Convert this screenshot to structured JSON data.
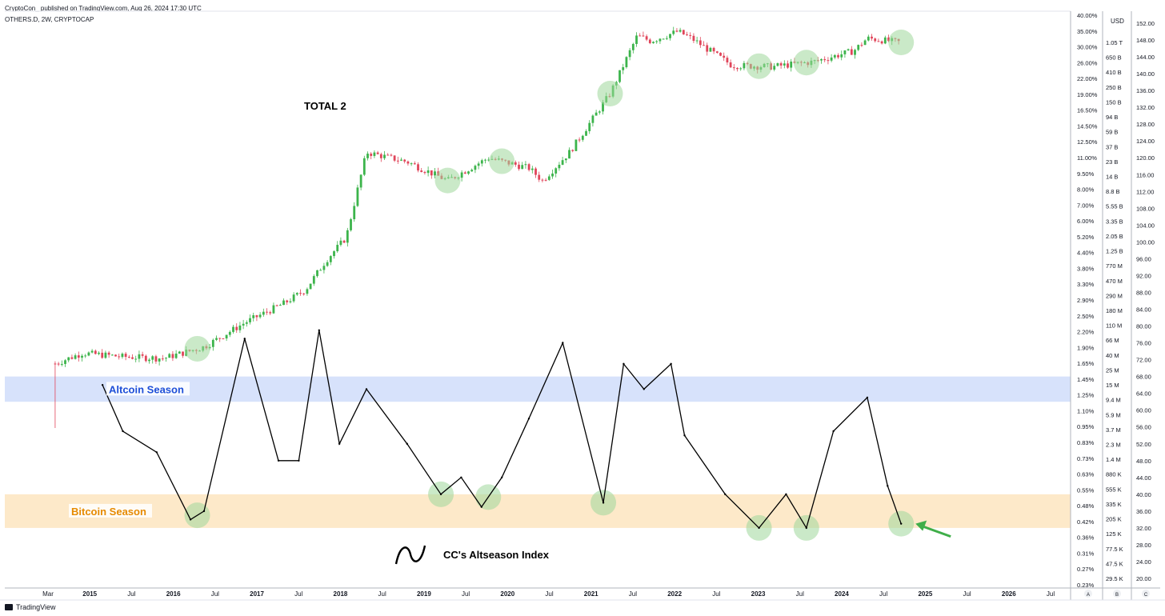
{
  "header": {
    "publisher": "CryptoCon_ published on TradingView.com, Aug 26, 2024 17:30 UTC",
    "symbol": "OTHERS.D, 2W, CRYPTOCAP"
  },
  "footer": {
    "brand": "TradingView"
  },
  "colors": {
    "up": "#26a69a",
    "up_body": "#3cb44b",
    "down": "#e0455a",
    "index_line": "#000000",
    "altcoin_band": "#d7e2fb",
    "bitcoin_band": "#fde9c9",
    "circle": "#9fd79a",
    "arrow": "#3fae49"
  },
  "chart_data": [
    {
      "type": "candlestick",
      "title": "",
      "label": "TOTAL 2",
      "y_axis_left": {
        "label": "",
        "ticks": [
          "40.00%",
          "35.00%",
          "30.00%",
          "26.00%",
          "22.00%",
          "19.00%",
          "16.50%",
          "14.50%",
          "12.50%",
          "11.00%",
          "9.50%",
          "8.00%",
          "7.00%",
          "6.00%",
          "5.20%",
          "4.40%",
          "3.80%",
          "3.30%",
          "2.90%",
          "2.50%",
          "2.20%",
          "1.90%",
          "1.65%",
          "1.45%",
          "1.25%",
          "1.10%",
          "0.95%",
          "0.83%",
          "0.73%",
          "0.63%",
          "0.55%",
          "0.48%",
          "0.42%",
          "0.36%",
          "0.31%",
          "0.27%",
          "0.23%"
        ]
      },
      "y_axis_middle": {
        "label": "USD",
        "ticks": [
          "1.05 T",
          "650 B",
          "410 B",
          "250 B",
          "150 B",
          "94 B",
          "59 B",
          "37 B",
          "23 B",
          "14 B",
          "8.8 B",
          "5.55 B",
          "3.35 B",
          "2.05 B",
          "1.25 B",
          "770 M",
          "470 M",
          "290 M",
          "180 M",
          "110 M",
          "66 M",
          "40 M",
          "25 M",
          "15 M",
          "9.4 M",
          "5.9 M",
          "3.7 M",
          "2.3 M",
          "1.4 M",
          "880 K",
          "555 K",
          "335 K",
          "205 K",
          "125 K",
          "77.5 K",
          "47.5 K",
          "29.5 K"
        ]
      },
      "y_axis_right": {
        "label": "",
        "ticks": [
          "152.00",
          "148.00",
          "144.00",
          "140.00",
          "136.00",
          "132.00",
          "128.00",
          "124.00",
          "120.00",
          "116.00",
          "112.00",
          "108.00",
          "104.00",
          "100.00",
          "96.00",
          "92.00",
          "88.00",
          "84.00",
          "80.00",
          "76.00",
          "72.00",
          "68.00",
          "64.00",
          "60.00",
          "56.00",
          "52.00",
          "48.00",
          "44.00",
          "40.00",
          "36.00",
          "32.00",
          "28.00",
          "24.00",
          "20.00"
        ]
      },
      "scale": "log",
      "series": [
        {
          "name": "",
          "x": [
            "2014-03",
            "2014-07",
            "2015-01",
            "2015-07",
            "2016-01",
            "2016-07",
            "2017-01",
            "2017-04",
            "2017-07",
            "2017-10",
            "2018-01",
            "2018-07",
            "2019-01",
            "2019-07",
            "2020-01",
            "2020-03",
            "2020-07",
            "2021-01",
            "2021-05",
            "2021-07",
            "2021-11",
            "2022-01",
            "2022-07",
            "2023-01",
            "2023-07",
            "2024-01",
            "2024-03",
            "2024-08"
          ],
          "close": [
            "32M",
            "45M",
            "40M",
            "38M",
            "55M",
            "120M",
            "230M",
            "350M",
            "900M",
            "1.9B",
            "30B",
            "22B",
            "12B",
            "25B",
            "18B",
            "12B",
            "30B",
            "200B",
            "1.3T",
            "1.1T",
            "1.5T",
            "1.2T",
            "500B",
            "480B",
            "560B",
            "800B",
            "1.2T",
            "1.05T"
          ]
        }
      ],
      "highlight_circles_x": [
        "2015-12",
        "2019-01",
        "2019-09",
        "2021-01",
        "2022-11",
        "2023-06",
        "2024-08"
      ]
    },
    {
      "type": "line",
      "title": "",
      "series": [
        {
          "name": "CC's Altseason Index",
          "x": [
            "2014-10",
            "2015-01",
            "2015-06",
            "2015-11",
            "2016-01",
            "2016-07",
            "2016-12",
            "2017-03",
            "2017-06",
            "2017-09",
            "2018-01",
            "2018-07",
            "2018-12",
            "2019-03",
            "2019-06",
            "2019-09",
            "2020-01",
            "2020-06",
            "2020-12",
            "2021-03",
            "2021-06",
            "2021-10",
            "2021-12",
            "2022-06",
            "2022-11",
            "2023-03",
            "2023-06",
            "2023-10",
            "2024-03",
            "2024-06",
            "2024-08"
          ],
          "y": [
            66,
            55,
            50,
            34,
            36,
            77,
            48,
            48,
            79,
            52,
            65,
            52,
            40,
            44,
            37,
            44,
            58,
            76,
            38,
            71,
            65,
            71,
            54,
            40,
            32,
            40,
            32,
            55,
            63,
            42,
            33
          ]
        }
      ],
      "bands": [
        {
          "name": "Altcoin Season",
          "from": 62,
          "to": 68
        },
        {
          "name": "Bitcoin Season",
          "from": 32,
          "to": 40
        }
      ],
      "highlight_circles_x": [
        "2015-12",
        "2018-12",
        "2019-07",
        "2020-12",
        "2022-11",
        "2023-06",
        "2024-08"
      ],
      "arrow_target_x": "2024-08"
    }
  ],
  "x_axis": {
    "ticks": [
      "Mar",
      "2015",
      "Jul",
      "2016",
      "Jul",
      "2017",
      "Jul",
      "2018",
      "Jul",
      "2019",
      "Jul",
      "2020",
      "Jul",
      "2021",
      "Jul",
      "2022",
      "Jul",
      "2023",
      "Jul",
      "2024",
      "Jul",
      "2025",
      "Jul",
      "2026",
      "Jul"
    ]
  },
  "axis_corner_labels": [
    "A",
    "B",
    "C"
  ]
}
